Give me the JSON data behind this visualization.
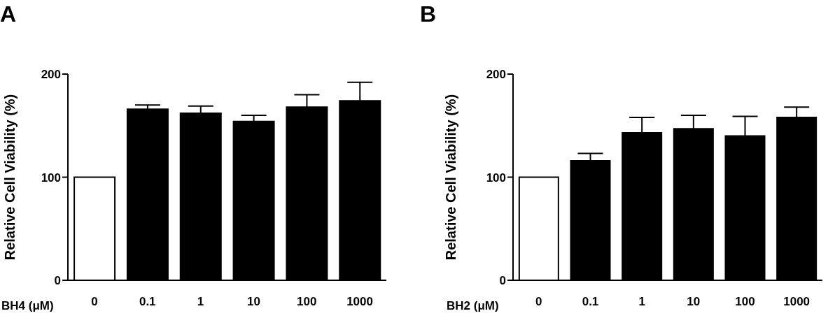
{
  "chart_data": [
    {
      "type": "bar",
      "title": "A",
      "xlabel": "BH4 (μM)",
      "ylabel": "Relative Cell Viability (%)",
      "categories": [
        "0",
        "0.1",
        "1",
        "10",
        "100",
        "1000"
      ],
      "values": [
        100,
        166,
        162,
        154,
        168,
        174
      ],
      "errors": [
        null,
        4,
        7,
        6,
        12,
        18
      ],
      "colors": [
        "#ffffff",
        "#000000",
        "#000000",
        "#000000",
        "#000000",
        "#000000"
      ],
      "ylim": [
        0,
        200
      ],
      "yticks": [
        0,
        100,
        200
      ],
      "grid": false,
      "legend": false
    },
    {
      "type": "bar",
      "title": "B",
      "xlabel": "BH2 (μM)",
      "ylabel": "Relative Cell Viability (%)",
      "categories": [
        "0",
        "0.1",
        "1",
        "10",
        "100",
        "1000"
      ],
      "values": [
        100,
        116,
        143,
        147,
        140,
        158
      ],
      "errors": [
        null,
        7,
        15,
        13,
        19,
        10
      ],
      "colors": [
        "#ffffff",
        "#000000",
        "#000000",
        "#000000",
        "#000000",
        "#000000"
      ],
      "ylim": [
        0,
        200
      ],
      "yticks": [
        0,
        100,
        200
      ],
      "grid": false,
      "legend": false
    }
  ]
}
